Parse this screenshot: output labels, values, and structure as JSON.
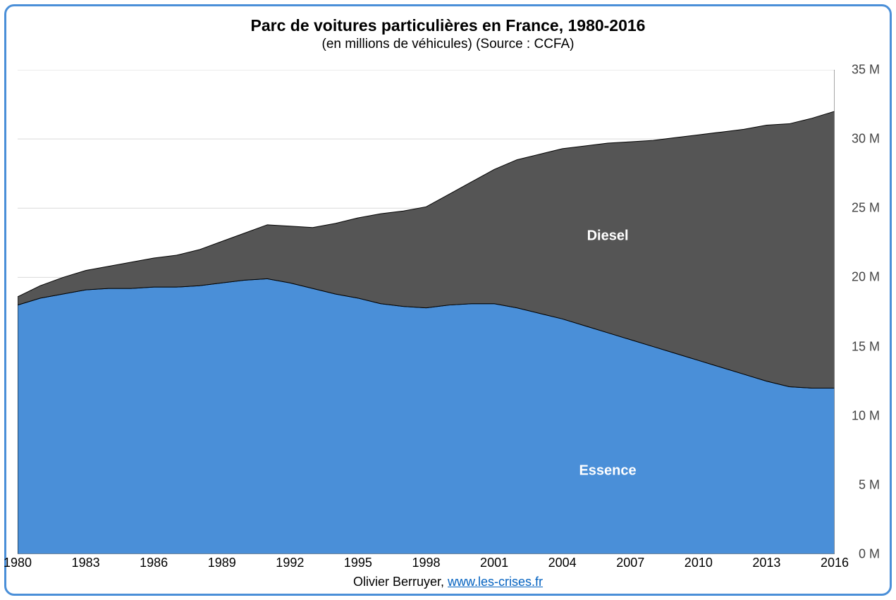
{
  "title": "Parc de voitures particulières en France, 1980-2016",
  "subtitle": "(en millions de véhicules) (Source : CCFA)",
  "footer_prefix": "Olivier Berruyer, ",
  "footer_link_text": "www.les-crises.fr",
  "footer_link_href": "http://www.les-crises.fr",
  "chart": {
    "type": "stacked-area",
    "x_min": 1980,
    "x_max": 2016,
    "y_min": 0,
    "y_max": 35,
    "y_ticks": [
      0,
      5,
      10,
      15,
      20,
      25,
      30,
      35
    ],
    "y_tick_suffix": " M",
    "x_ticks": [
      1980,
      1983,
      1986,
      1989,
      1992,
      1995,
      1998,
      2001,
      2004,
      2007,
      2010,
      2013,
      2016
    ],
    "grid_color": "#d9d9d9",
    "axis_color": "#888888",
    "background_color": "#ffffff",
    "tick_font_size": 18,
    "title_font_size": 23,
    "subtitle_font_size": 19,
    "label_font_size": 20,
    "years": [
      1980,
      1981,
      1982,
      1983,
      1984,
      1985,
      1986,
      1987,
      1988,
      1989,
      1990,
      1991,
      1992,
      1993,
      1994,
      1995,
      1996,
      1997,
      1998,
      1999,
      2000,
      2001,
      2002,
      2003,
      2004,
      2005,
      2006,
      2007,
      2008,
      2009,
      2010,
      2011,
      2012,
      2013,
      2014,
      2015,
      2016
    ],
    "series": [
      {
        "name": "Essence",
        "color": "#4a8fd8",
        "stroke": "#000000",
        "label_pos_year": 2006,
        "label_pos_value": 6.0,
        "values": [
          18.0,
          18.5,
          18.8,
          19.1,
          19.2,
          19.2,
          19.3,
          19.3,
          19.4,
          19.6,
          19.8,
          19.9,
          19.6,
          19.2,
          18.8,
          18.5,
          18.1,
          17.9,
          17.8,
          18.0,
          18.1,
          18.1,
          17.8,
          17.4,
          17.0,
          16.5,
          16.0,
          15.5,
          15.0,
          14.5,
          14.0,
          13.5,
          13.0,
          12.5,
          12.1,
          12.0,
          12.0
        ]
      },
      {
        "name": "Diesel",
        "color": "#555555",
        "stroke": "#000000",
        "label_pos_year": 2006,
        "label_pos_value": 23.0,
        "values": [
          0.6,
          0.9,
          1.2,
          1.4,
          1.6,
          1.9,
          2.1,
          2.3,
          2.6,
          3.0,
          3.4,
          3.9,
          4.1,
          4.4,
          5.1,
          5.8,
          6.5,
          6.9,
          7.3,
          8.0,
          8.8,
          9.7,
          10.7,
          11.5,
          12.3,
          13.0,
          13.7,
          14.3,
          14.9,
          15.6,
          16.3,
          17.0,
          17.7,
          18.5,
          19.0,
          19.5,
          20.0
        ]
      }
    ]
  },
  "frame_border_color": "#4a8fd8"
}
